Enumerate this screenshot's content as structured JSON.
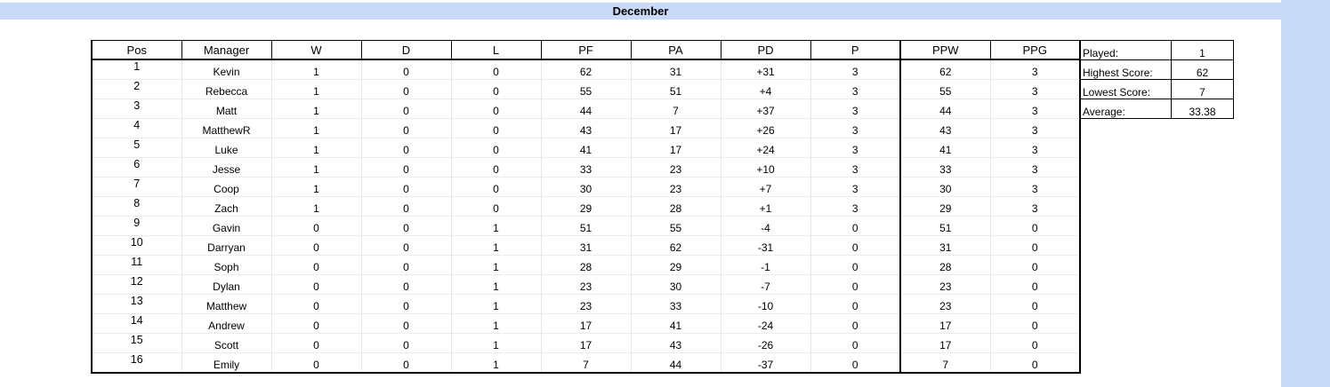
{
  "title": "December",
  "columns": [
    "Pos",
    "Manager",
    "W",
    "D",
    "L",
    "PF",
    "PA",
    "PD",
    "P",
    "PPW",
    "PPG"
  ],
  "rows": [
    [
      "1",
      "Kevin",
      "1",
      "0",
      "0",
      "62",
      "31",
      "+31",
      "3",
      "62",
      "3"
    ],
    [
      "2",
      "Rebecca",
      "1",
      "0",
      "0",
      "55",
      "51",
      "+4",
      "3",
      "55",
      "3"
    ],
    [
      "3",
      "Matt",
      "1",
      "0",
      "0",
      "44",
      "7",
      "+37",
      "3",
      "44",
      "3"
    ],
    [
      "4",
      "MatthewR",
      "1",
      "0",
      "0",
      "43",
      "17",
      "+26",
      "3",
      "43",
      "3"
    ],
    [
      "5",
      "Luke",
      "1",
      "0",
      "0",
      "41",
      "17",
      "+24",
      "3",
      "41",
      "3"
    ],
    [
      "6",
      "Jesse",
      "1",
      "0",
      "0",
      "33",
      "23",
      "+10",
      "3",
      "33",
      "3"
    ],
    [
      "7",
      "Coop",
      "1",
      "0",
      "0",
      "30",
      "23",
      "+7",
      "3",
      "30",
      "3"
    ],
    [
      "8",
      "Zach",
      "1",
      "0",
      "0",
      "29",
      "28",
      "+1",
      "3",
      "29",
      "3"
    ],
    [
      "9",
      "Gavin",
      "0",
      "0",
      "1",
      "51",
      "55",
      "-4",
      "0",
      "51",
      "0"
    ],
    [
      "10",
      "Darryan",
      "0",
      "0",
      "1",
      "31",
      "62",
      "-31",
      "0",
      "31",
      "0"
    ],
    [
      "11",
      "Soph",
      "0",
      "0",
      "1",
      "28",
      "29",
      "-1",
      "0",
      "28",
      "0"
    ],
    [
      "12",
      "Dylan",
      "0",
      "0",
      "1",
      "23",
      "30",
      "-7",
      "0",
      "23",
      "0"
    ],
    [
      "13",
      "Matthew",
      "0",
      "0",
      "1",
      "23",
      "33",
      "-10",
      "0",
      "23",
      "0"
    ],
    [
      "14",
      "Andrew",
      "0",
      "0",
      "1",
      "17",
      "41",
      "-24",
      "0",
      "17",
      "0"
    ],
    [
      "15",
      "Scott",
      "0",
      "0",
      "1",
      "17",
      "43",
      "-26",
      "0",
      "17",
      "0"
    ],
    [
      "16",
      "Emily",
      "0",
      "0",
      "1",
      "7",
      "44",
      "-37",
      "0",
      "7",
      "0"
    ]
  ],
  "summary": [
    {
      "label": "Played:",
      "value": "1"
    },
    {
      "label": "Highest Score:",
      "value": "62"
    },
    {
      "label": "Lowest Score:",
      "value": "7"
    },
    {
      "label": "Average:",
      "value": "33.38"
    }
  ],
  "colors": {
    "header_band": "#c9daf8",
    "border": "#000000",
    "gridline": "#e6e6e6"
  }
}
